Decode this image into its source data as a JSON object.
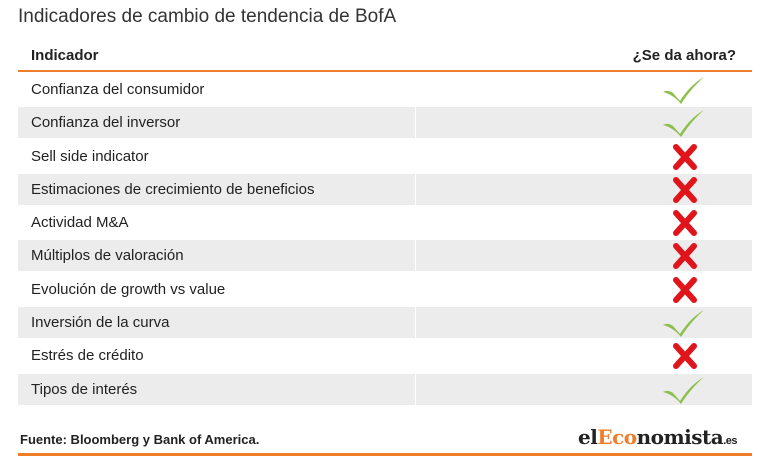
{
  "title": "Indicadores de cambio de tendencia de BofA",
  "table": {
    "headers": {
      "indicator": "Indicador",
      "status": "¿Se da ahora?"
    },
    "rows": [
      {
        "label": "Confianza del consumidor",
        "status": "yes"
      },
      {
        "label": "Confianza del inversor",
        "status": "yes"
      },
      {
        "label": "Sell side indicator",
        "status": "no"
      },
      {
        "label": "Estimaciones de crecimiento de beneficios",
        "status": "no"
      },
      {
        "label": "Actividad M&A",
        "status": "no"
      },
      {
        "label": "Múltiplos de valoración",
        "status": "no"
      },
      {
        "label": "Evolución de growth vs value",
        "status": "no"
      },
      {
        "label": "Inversión de la curva",
        "status": "yes"
      },
      {
        "label": "Estrés de crédito",
        "status": "no"
      },
      {
        "label": "Tipos de interés",
        "status": "yes"
      }
    ]
  },
  "source": "Fuente: Bloomberg y Bank of America.",
  "logo": {
    "part1": "el",
    "part2": "Eco",
    "part3": "nomista",
    "part4": ".es"
  },
  "colors": {
    "accent": "#f07d2a",
    "check": "#8cbf4c",
    "cross": "#e0151b",
    "shade": "#ececec"
  },
  "icons": {
    "yes": "check-icon",
    "no": "cross-icon"
  }
}
